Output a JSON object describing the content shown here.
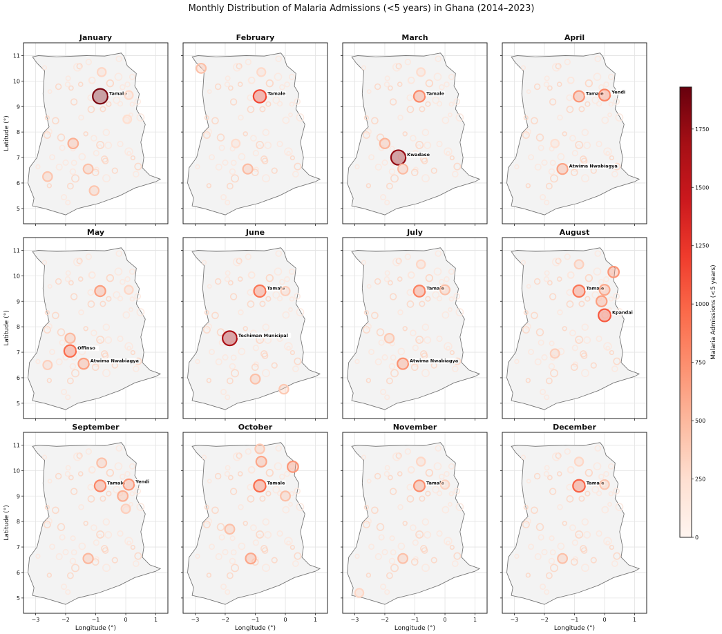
{
  "chart_data": {
    "type": "scatter",
    "title": "Monthly Distribution of Malaria Admissions (<5 years) in Ghana (2014–2023)",
    "xlabel": "Longitude (°)",
    "ylabel": "Latitude (°)",
    "xlim": [
      -3.4,
      1.4
    ],
    "ylim": [
      4.4,
      11.5
    ],
    "xticks": [
      -3,
      -2,
      -1,
      0,
      1
    ],
    "yticks": [
      5,
      6,
      7,
      8,
      9,
      10,
      11
    ],
    "grid": true,
    "colorbar": {
      "label": "Malaria Admissions (<5 years)",
      "range": [
        0,
        1930
      ],
      "ticks": [
        0,
        250,
        500,
        750,
        1000,
        1250,
        1500,
        1750
      ],
      "colormap": "Reds"
    },
    "panels": [
      {
        "title": "January",
        "points": [
          {
            "lon": -0.85,
            "lat": 9.4,
            "value": 1850,
            "label": "Tamale"
          },
          {
            "lon": -1.75,
            "lat": 7.55,
            "value": 550
          },
          {
            "lon": -1.25,
            "lat": 6.55,
            "value": 450
          },
          {
            "lon": -1.05,
            "lat": 5.7,
            "value": 420
          },
          {
            "lon": -2.6,
            "lat": 6.25,
            "value": 420
          },
          {
            "lon": -0.8,
            "lat": 10.35,
            "value": 300
          },
          {
            "lon": 0.1,
            "lat": 9.45,
            "value": 280
          },
          {
            "lon": 0.05,
            "lat": 8.5,
            "value": 250
          }
        ]
      },
      {
        "title": "February",
        "points": [
          {
            "lon": -0.85,
            "lat": 9.4,
            "value": 1150,
            "label": "Tamale"
          },
          {
            "lon": -2.8,
            "lat": 10.5,
            "value": 450
          },
          {
            "lon": -1.25,
            "lat": 6.55,
            "value": 480
          },
          {
            "lon": -0.8,
            "lat": 10.35,
            "value": 280
          },
          {
            "lon": -1.65,
            "lat": 7.55,
            "value": 260
          }
        ]
      },
      {
        "title": "March",
        "points": [
          {
            "lon": -0.85,
            "lat": 9.4,
            "value": 780,
            "label": "Tamale"
          },
          {
            "lon": -1.55,
            "lat": 7.0,
            "value": 1750,
            "label": "Kwadaso"
          },
          {
            "lon": -2.0,
            "lat": 7.55,
            "value": 520
          },
          {
            "lon": -1.4,
            "lat": 6.55,
            "value": 480
          },
          {
            "lon": -0.8,
            "lat": 10.35,
            "value": 260
          }
        ]
      },
      {
        "title": "April",
        "points": [
          {
            "lon": -0.85,
            "lat": 9.4,
            "value": 700,
            "label": "Tamale"
          },
          {
            "lon": 0.0,
            "lat": 9.45,
            "value": 800,
            "label": "Yendi"
          },
          {
            "lon": -1.4,
            "lat": 6.55,
            "value": 620,
            "label": "Atwima Nwabiagya"
          },
          {
            "lon": -1.65,
            "lat": 7.55,
            "value": 240
          }
        ]
      },
      {
        "title": "May",
        "points": [
          {
            "lon": -0.85,
            "lat": 9.4,
            "value": 650
          },
          {
            "lon": -1.85,
            "lat": 7.05,
            "value": 950,
            "label": "Offinso"
          },
          {
            "lon": -1.4,
            "lat": 6.55,
            "value": 650,
            "label": "Atwima Nwabiagya"
          },
          {
            "lon": -1.85,
            "lat": 7.55,
            "value": 500
          },
          {
            "lon": -2.6,
            "lat": 6.5,
            "value": 350
          },
          {
            "lon": 0.1,
            "lat": 9.45,
            "value": 300
          }
        ]
      },
      {
        "title": "June",
        "points": [
          {
            "lon": -0.85,
            "lat": 9.4,
            "value": 900,
            "label": "Tamale"
          },
          {
            "lon": -1.85,
            "lat": 7.55,
            "value": 1650,
            "label": "Techiman Municipal"
          },
          {
            "lon": -1.0,
            "lat": 5.95,
            "value": 450
          },
          {
            "lon": -0.05,
            "lat": 5.55,
            "value": 400
          },
          {
            "lon": 0.0,
            "lat": 9.4,
            "value": 350
          }
        ]
      },
      {
        "title": "July",
        "points": [
          {
            "lon": -0.85,
            "lat": 9.4,
            "value": 820,
            "label": "Tamale"
          },
          {
            "lon": -1.4,
            "lat": 6.55,
            "value": 720,
            "label": "Atwima Nwabiagya"
          },
          {
            "lon": 0.0,
            "lat": 9.45,
            "value": 450
          },
          {
            "lon": -1.85,
            "lat": 7.55,
            "value": 400
          },
          {
            "lon": -0.8,
            "lat": 10.45,
            "value": 300
          }
        ]
      },
      {
        "title": "August",
        "points": [
          {
            "lon": -0.85,
            "lat": 9.4,
            "value": 900,
            "label": "Tamale"
          },
          {
            "lon": 0.0,
            "lat": 8.45,
            "value": 1050,
            "label": "Kpandai"
          },
          {
            "lon": 0.3,
            "lat": 10.15,
            "value": 700
          },
          {
            "lon": -0.1,
            "lat": 9.0,
            "value": 650
          },
          {
            "lon": 0.0,
            "lat": 9.45,
            "value": 600
          },
          {
            "lon": -0.85,
            "lat": 10.45,
            "value": 350
          },
          {
            "lon": -1.65,
            "lat": 6.95,
            "value": 350
          }
        ]
      },
      {
        "title": "September",
        "points": [
          {
            "lon": -0.85,
            "lat": 9.4,
            "value": 800,
            "label": "Tamale"
          },
          {
            "lon": 0.1,
            "lat": 9.45,
            "value": 680,
            "label": "Yendi"
          },
          {
            "lon": -0.1,
            "lat": 9.0,
            "value": 560
          },
          {
            "lon": -0.8,
            "lat": 10.3,
            "value": 450
          },
          {
            "lon": -1.25,
            "lat": 6.55,
            "value": 500
          },
          {
            "lon": 0.0,
            "lat": 8.5,
            "value": 350
          }
        ]
      },
      {
        "title": "October",
        "points": [
          {
            "lon": -0.85,
            "lat": 9.4,
            "value": 950,
            "label": "Tamale"
          },
          {
            "lon": 0.25,
            "lat": 10.15,
            "value": 700
          },
          {
            "lon": -0.8,
            "lat": 10.35,
            "value": 600
          },
          {
            "lon": -1.15,
            "lat": 6.55,
            "value": 600
          },
          {
            "lon": -0.85,
            "lat": 10.85,
            "value": 400
          },
          {
            "lon": 0.0,
            "lat": 9.0,
            "value": 450
          },
          {
            "lon": -1.85,
            "lat": 7.7,
            "value": 450
          }
        ]
      },
      {
        "title": "November",
        "points": [
          {
            "lon": -0.85,
            "lat": 9.4,
            "value": 750,
            "label": "Tamale"
          },
          {
            "lon": -1.4,
            "lat": 6.55,
            "value": 450
          },
          {
            "lon": -0.8,
            "lat": 10.35,
            "value": 300
          },
          {
            "lon": 0.0,
            "lat": 9.45,
            "value": 320
          },
          {
            "lon": -2.85,
            "lat": 5.2,
            "value": 300
          }
        ]
      },
      {
        "title": "December",
        "points": [
          {
            "lon": -0.85,
            "lat": 9.4,
            "value": 1000,
            "label": "Tamale"
          },
          {
            "lon": -1.4,
            "lat": 6.55,
            "value": 450
          },
          {
            "lon": 0.0,
            "lat": 9.45,
            "value": 400
          },
          {
            "lon": -0.85,
            "lat": 10.35,
            "value": 300
          }
        ]
      }
    ]
  }
}
